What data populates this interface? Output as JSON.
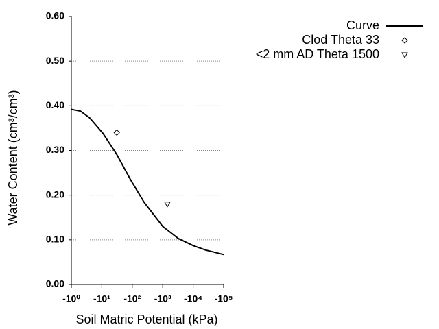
{
  "chart_data": {
    "type": "line",
    "xlabel": "Soil Matric Potential (kPa)",
    "ylabel": "Water Content (cm³/cm³)",
    "xscale": "log",
    "xlim": [
      -1,
      -100000
    ],
    "xticks": [
      {
        "value": -1,
        "label": "-10⁰"
      },
      {
        "value": -10,
        "label": "-10¹"
      },
      {
        "value": -100,
        "label": "-10²"
      },
      {
        "value": -1000,
        "label": "-10³"
      },
      {
        "value": -10000,
        "label": "-10⁴"
      },
      {
        "value": -100000,
        "label": "-10⁵"
      }
    ],
    "ylim": [
      0,
      0.6
    ],
    "yticks": [
      {
        "value": 0,
        "label": "0.00"
      },
      {
        "value": 0.1,
        "label": "0.10"
      },
      {
        "value": 0.2,
        "label": "0.20"
      },
      {
        "value": 0.3,
        "label": "0.30"
      },
      {
        "value": 0.4,
        "label": "0.40"
      },
      {
        "value": 0.5,
        "label": "0.50"
      },
      {
        "value": 0.6,
        "label": "0.60"
      }
    ],
    "grid": true,
    "legend": "upper right",
    "series": [
      {
        "name": "Curve",
        "kind": "line",
        "color": "#000000",
        "x": [
          -1,
          -2,
          -4,
          -11,
          -31,
          -87,
          -245,
          -1000,
          -3240,
          -10000,
          -25700,
          -100000
        ],
        "values": [
          0.392,
          0.388,
          0.373,
          0.338,
          0.291,
          0.235,
          0.184,
          0.13,
          0.103,
          0.087,
          0.077,
          0.067
        ]
      },
      {
        "name": "Clod Theta 33",
        "kind": "scatter",
        "marker": "diamond",
        "color": "#000000",
        "x": [
          -31
        ],
        "values": [
          0.34
        ]
      },
      {
        "name": "<2 mm AD Theta 1500",
        "kind": "scatter",
        "marker": "triangle-down",
        "color": "#000000",
        "x": [
          -1420
        ],
        "values": [
          0.18
        ]
      }
    ]
  }
}
